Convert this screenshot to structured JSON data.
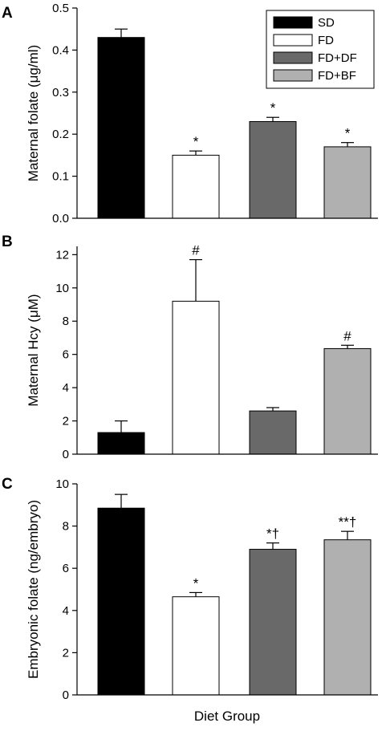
{
  "figure": {
    "xlabel": "Diet Group"
  },
  "chart_data": [
    {
      "panel": "A",
      "type": "bar",
      "title": "",
      "xlabel": "",
      "ylabel": "Maternal folate (μg/ml)",
      "ylim": [
        0,
        0.5
      ],
      "yticks": [
        "0.0",
        "0.1",
        "0.2",
        "0.3",
        "0.4",
        "0.5"
      ],
      "categories": [
        "SD",
        "FD",
        "FD+DF",
        "FD+BF"
      ],
      "values": [
        0.43,
        0.15,
        0.23,
        0.17
      ],
      "errors": [
        0.02,
        0.01,
        0.01,
        0.01
      ],
      "annotations": [
        "",
        "*",
        "*",
        "*"
      ],
      "legend": {
        "position": "top-right",
        "entries": [
          "SD",
          "FD",
          "FD+DF",
          "FD+BF"
        ]
      },
      "colors": [
        "#000000",
        "#ffffff",
        "#696969",
        "#b0b0b0"
      ]
    },
    {
      "panel": "B",
      "type": "bar",
      "title": "",
      "xlabel": "",
      "ylabel": "Maternal Hcy (μM)",
      "ylim": [
        0,
        12.5
      ],
      "yticks": [
        "0",
        "2",
        "4",
        "6",
        "8",
        "10",
        "12"
      ],
      "categories": [
        "SD",
        "FD",
        "FD+DF",
        "FD+BF"
      ],
      "values": [
        1.3,
        9.2,
        2.6,
        6.35
      ],
      "errors": [
        0.7,
        2.5,
        0.2,
        0.2
      ],
      "annotations": [
        "",
        "#",
        "",
        "#"
      ],
      "colors": [
        "#000000",
        "#ffffff",
        "#696969",
        "#b0b0b0"
      ]
    },
    {
      "panel": "C",
      "type": "bar",
      "title": "",
      "xlabel": "Diet Group",
      "ylabel": "Embryonic folate (ng/embryo)",
      "ylim": [
        0,
        10
      ],
      "yticks": [
        "0",
        "2",
        "4",
        "6",
        "8",
        "10"
      ],
      "categories": [
        "SD",
        "FD",
        "FD+DF",
        "FD+BF"
      ],
      "values": [
        8.85,
        4.65,
        6.9,
        7.35
      ],
      "errors": [
        0.65,
        0.2,
        0.3,
        0.4
      ],
      "annotations": [
        "",
        "*",
        "*†",
        "**†"
      ],
      "colors": [
        "#000000",
        "#ffffff",
        "#696969",
        "#b0b0b0"
      ]
    }
  ]
}
